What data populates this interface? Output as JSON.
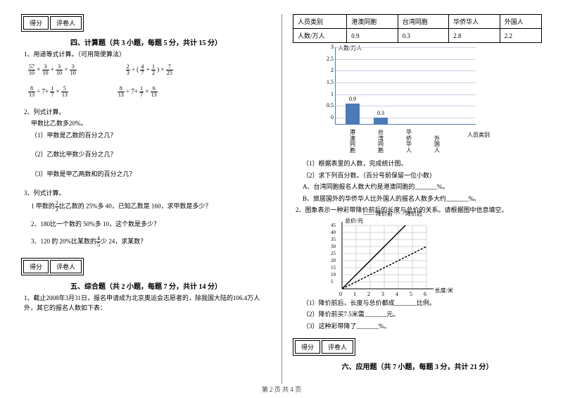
{
  "footer": "第 2 页 共 4 页",
  "scorebox": {
    "c1": "得分",
    "c2": "评卷人"
  },
  "left": {
    "sec4_title": "四、计算题（共 3 小题，每题 5 分，共计 15 分）",
    "q1": "1、用递等式计算。（可用简便算法）",
    "q2": "2、列式计算。",
    "q2a": "甲数比乙数多20%。",
    "q2_1": "（1）甲数是乙数的百分之几？",
    "q2_2": "（2）乙数比甲数少百分之几？",
    "q2_3": "（3）甲数是甲乙两数和的百分之几？",
    "q3": "3、列式计算。",
    "q3_1p": "1 甲数的",
    "q3_1s": "比乙数的 25%多 40，已知乙数是 160，求甲数是多少？",
    "q3_2": "2、180比一个数的 50%多 10，这个数是多少？",
    "q3_3p": "3、120 的 20%比某数的",
    "q3_3s": "少 24，求某数？",
    "sec5_title": "五、综合题（共 2 小题，每题 7 分，共计 14 分）",
    "q5_1": "1、截止2008年3月31日，报名申请成为北京奥运会志愿者的，除我国大陆的106.4万人外，其它的报名人数如下表：",
    "f": {
      "e1a_n": "57",
      "e1a_d": "10",
      "e1b_n": "3",
      "e1b_d": "10",
      "e1c_n": "3",
      "e1c_d": "10",
      "e2a_n": "2",
      "e2a_d": "3",
      "e2b_n": "4",
      "e2b_d": "7",
      "e2c_n": "1",
      "e2c_d": "2",
      "e2d_n": "7",
      "e2d_d": "25",
      "e3a_n": "8",
      "e3a_d": "13",
      "e3b_n": "1",
      "e3b_d": "7",
      "e3c_n": "5",
      "e3c_d": "13",
      "e4a_n": "8",
      "e4a_d": "13",
      "e4b_n": "1",
      "e4b_d": "7",
      "e4c_n": "6",
      "e4c_d": "13",
      "f23_n": "2",
      "f23_d": "3",
      "f45_n": "4",
      "f45_d": "5"
    }
  },
  "right": {
    "table": {
      "h1": "人员类别",
      "h2": "港澳同胞",
      "h3": "台湾同胞",
      "h4": "华侨华人",
      "h5": "外国人",
      "r1": "人数/万人",
      "v1": "0.9",
      "v2": "0.3",
      "v3": "2.8",
      "v4": "2.2"
    },
    "chart1": {
      "ylabel": "人数/万人",
      "xlabel": "人员类别",
      "ticks": [
        "0",
        "0.5",
        "1",
        "1.5",
        "2",
        "2.5",
        "3"
      ],
      "cats": [
        "港澳同胞",
        "台湾同胞",
        "华侨华人",
        "外国人"
      ],
      "vals": [
        0.9,
        0.3,
        null,
        null
      ],
      "labels": [
        "0.9",
        "0.3",
        "",
        ""
      ],
      "bar_color": "#4a7ab8",
      "grid_color": "#c8d4e6"
    },
    "q1_1": "（1）根据表里的人数，完成统计图。",
    "q1_2": "（2）求下列百分数。（百分号前保留一位小数）",
    "q1_A": "A、台湾同胞报名人数大约是港澳同胞的_______%。",
    "q1_B": "B、旅居国外的华侨华人比外国人的报名人数多大约_______%。",
    "q2": "2、图象表示一种彩带降价前后的长度与总价的关系。请根据图中信息填空。",
    "chart2": {
      "ylabel": "总价/元",
      "xlabel": "长度/米",
      "xticks": [
        "0",
        "1",
        "2",
        "3",
        "4",
        "5",
        "6"
      ],
      "yticks": [
        "5",
        "10",
        "15",
        "20",
        "25",
        "30",
        "35",
        "40",
        "45"
      ],
      "legend1": "降价前",
      "legend2": "降价后",
      "line_color": "#000",
      "grid_color": "#aaa"
    },
    "q2_1": "（1）降价前后，长度与总价都成_______比例。",
    "q2_2": "（2）降价前买7.5米需_______元。",
    "q2_3": "（3）这种彩带降了_______%。",
    "sec6_title": "六、应用题（共 7 小题，每题 3 分，共计 21 分）"
  }
}
